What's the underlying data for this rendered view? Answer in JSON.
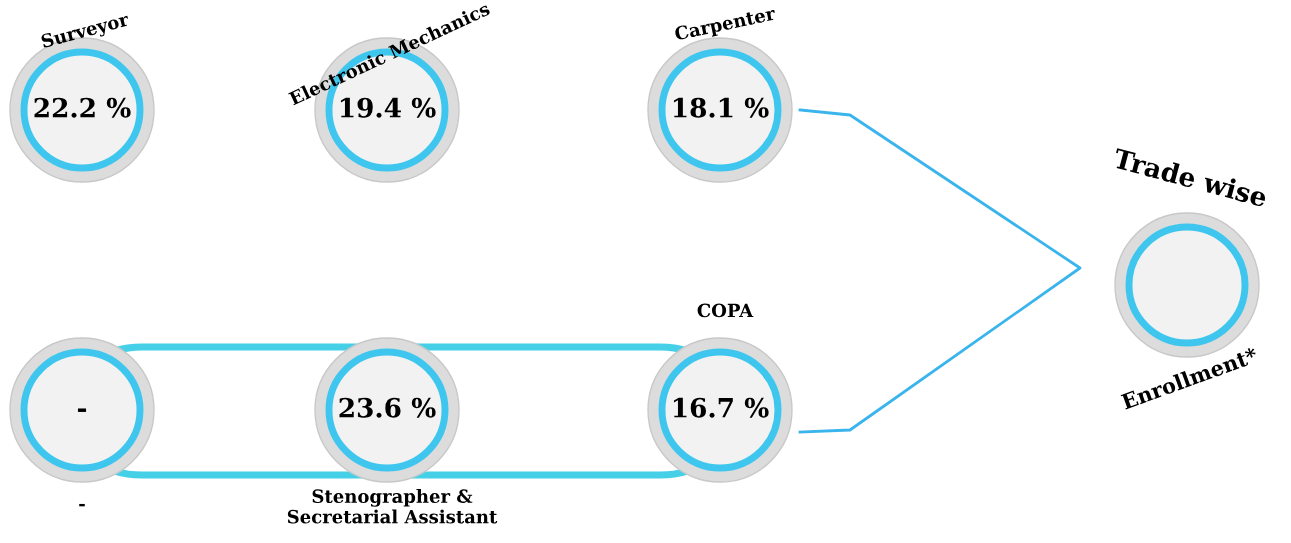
{
  "chart_data": {
    "type": "other",
    "title": "Trade wise",
    "subtitle": "Enrollment*",
    "categories": [
      "Surveyor",
      "Electronic Mechanics",
      "Carpenter",
      "-",
      "Stenographer &\nSecretarial Assistant",
      "COPA"
    ],
    "values": [
      22.2,
      19.4,
      18.1,
      null,
      23.6,
      16.7
    ],
    "value_labels": [
      "22.2 %",
      "19.4 %",
      "18.1 %",
      "-",
      "23.6 %",
      "16.7 %"
    ],
    "color": "#3fc6ee"
  }
}
